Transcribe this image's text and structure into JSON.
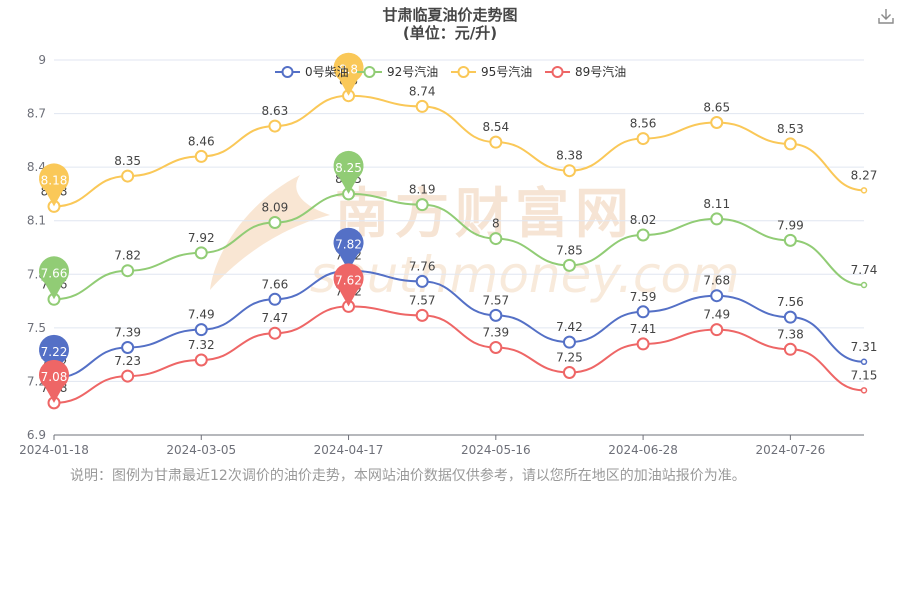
{
  "colors": {
    "series": [
      "#5470c6",
      "#91cc75",
      "#fac858",
      "#ee6666"
    ],
    "grid": "#e0e6f1",
    "axis": "#6e7079",
    "watermark": "#f5d9bf"
  },
  "watermark": {
    "cn": "南方财富网",
    "en": "southmoney.com"
  },
  "note": "说明：图例为甘肃最近12次调价的油价走势，本网站油价数据仅供参考，请以您所在地区的加油站报价为准。",
  "icons": {
    "download": "download-icon"
  },
  "chart_data": {
    "type": "line",
    "title": "甘肃临夏油价走势图",
    "subtitle": "(单位：元/升)",
    "x": [
      "2024-01-18",
      "2024-02-01",
      "2024-03-05",
      "2024-03-19",
      "2024-04-17",
      "2024-05-01",
      "2024-05-16",
      "2024-05-30",
      "2024-06-28",
      "2024-07-11",
      "2024-07-26",
      "2024-08-08"
    ],
    "xticks": [
      "2024-01-18",
      "2024-03-05",
      "2024-04-17",
      "2024-05-16",
      "2024-06-28",
      "2024-07-26"
    ],
    "ylim": [
      6.9,
      9
    ],
    "yticks": [
      "6.9",
      "7.2",
      "7.5",
      "7.8",
      "8.1",
      "8.4",
      "8.7",
      "9"
    ],
    "smooth": true,
    "grid": true,
    "legend_position": "top-center",
    "series": [
      {
        "name": "0号柴油",
        "values": [
          7.22,
          7.39,
          7.49,
          7.66,
          7.82,
          7.76,
          7.57,
          7.42,
          7.59,
          7.68,
          7.56,
          7.31
        ],
        "max": 7.82,
        "min": 7.22
      },
      {
        "name": "92号汽油",
        "values": [
          7.66,
          7.82,
          7.92,
          8.09,
          8.25,
          8.19,
          8.0,
          7.85,
          8.02,
          8.11,
          7.99,
          7.74
        ],
        "max": 8.25,
        "min": 7.66
      },
      {
        "name": "95号汽油",
        "values": [
          8.18,
          8.35,
          8.46,
          8.63,
          8.8,
          8.74,
          8.54,
          8.38,
          8.56,
          8.65,
          8.53,
          8.27
        ],
        "max": 8.8,
        "min": 8.18
      },
      {
        "name": "89号汽油",
        "values": [
          7.08,
          7.23,
          7.32,
          7.47,
          7.62,
          7.57,
          7.39,
          7.25,
          7.41,
          7.49,
          7.38,
          7.15
        ],
        "max": 7.62,
        "min": 7.08
      }
    ]
  }
}
